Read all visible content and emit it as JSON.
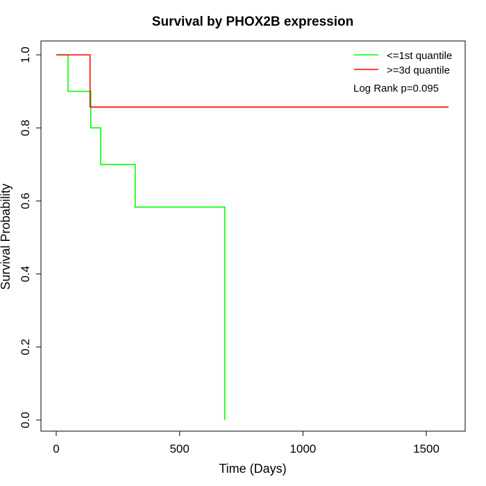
{
  "chart_data": {
    "type": "line",
    "subtype": "kaplan-meier-step",
    "title": "Survival by PHOX2B expression",
    "xlabel": "Time (Days)",
    "ylabel": "Survival Probability",
    "xlim": [
      0,
      1600
    ],
    "ylim": [
      0,
      1
    ],
    "xticks": [
      0,
      500,
      1000,
      1500
    ],
    "yticks": [
      0.0,
      0.2,
      0.4,
      0.6,
      0.8,
      1.0
    ],
    "xtick_labels": [
      "0",
      "500",
      "1000",
      "1500"
    ],
    "ytick_labels": [
      "0.0",
      "0.2",
      "0.4",
      "0.6",
      "0.8",
      "1.0"
    ],
    "grid": false,
    "legend_position": "top-right",
    "annotation": "Log Rank p=0.095",
    "series": [
      {
        "name": "<=1st quantile",
        "color": "#00ff00",
        "x": [
          0,
          48,
          140,
          180,
          320,
          683
        ],
        "y": [
          1.0,
          0.9,
          0.8,
          0.7,
          0.583,
          0.0
        ]
      },
      {
        "name": ">=3d quantile",
        "color": "#ff0000",
        "x": [
          0,
          137,
          1590
        ],
        "y": [
          1.0,
          0.857,
          0.857
        ]
      }
    ]
  }
}
